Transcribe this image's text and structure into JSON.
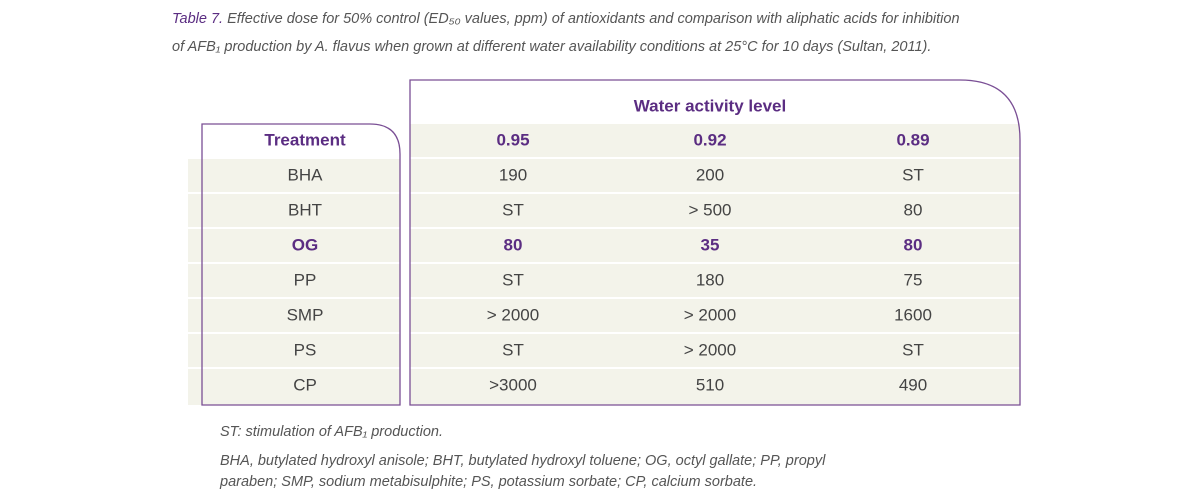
{
  "caption": {
    "label": "Table 7.",
    "lines": [
      "Effective dose for 50% control (ED₅₀ values, ppm) of antioxidants and comparison with aliphatic acids for inhibition",
      "of AFB₁ production by A. flavus when grown at different water availability conditions at 25°C for 10 days (Sultan, 2011)."
    ]
  },
  "table": {
    "group_header": "Water activity level",
    "columns": [
      "Treatment",
      "0.95",
      "0.92",
      "0.89"
    ],
    "rows": [
      [
        "BHA",
        "190",
        "200",
        "ST"
      ],
      [
        "BHT",
        "ST",
        "> 500",
        "80"
      ],
      [
        "OG",
        "80",
        "35",
        "80"
      ],
      [
        "PP",
        "ST",
        "180",
        "75"
      ],
      [
        "SMP",
        "> 2000",
        "> 2000",
        "1600"
      ],
      [
        "PS",
        "ST",
        "> 2000",
        "ST"
      ],
      [
        "CP",
        ">3000",
        "510",
        "490"
      ]
    ]
  },
  "footnotes": {
    "note": "ST: stimulation of AFB₁ production.",
    "abbreviations": [
      "BHA, butylated hydroxyl anisole; BHT, butylated hydroxyl toluene; OG, octyl gallate; PP, propyl",
      "paraben; SMP, sodium metabisulphite; PS, potassium sorbate; CP, calcium sorbate."
    ]
  }
}
